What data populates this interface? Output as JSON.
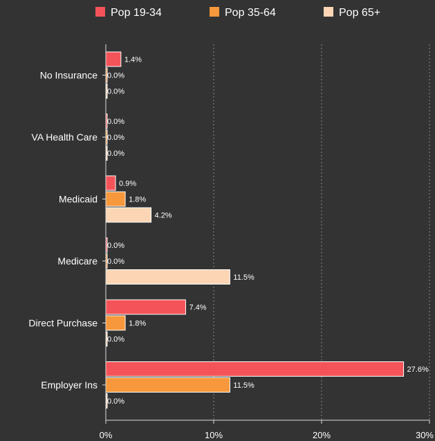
{
  "chart_data": {
    "type": "bar",
    "orientation": "horizontal",
    "categories": [
      "No Insurance",
      "VA Health Care",
      "Medicaid",
      "Medicare",
      "Direct Purchase",
      "Employer Ins"
    ],
    "series": [
      {
        "name": "Pop 19-34",
        "color": "#f45459",
        "values": [
          1.4,
          0.0,
          0.9,
          0.0,
          7.4,
          27.6
        ],
        "labels": [
          "1.4%",
          "0.0%",
          "0.9%",
          "0.0%",
          "7.4%",
          "27.6%"
        ]
      },
      {
        "name": "Pop 35-64",
        "color": "#f6983b",
        "values": [
          0.0,
          0.0,
          1.8,
          0.0,
          1.8,
          11.5
        ],
        "labels": [
          "0.0%",
          "0.0%",
          "1.8%",
          "0.0%",
          "1.8%",
          "11.5%"
        ]
      },
      {
        "name": "Pop 65+",
        "color": "#fbd5b4",
        "values": [
          0.0,
          0.0,
          4.2,
          11.5,
          0.0,
          0.0
        ],
        "labels": [
          "0.0%",
          "0.0%",
          "4.2%",
          "11.5%",
          "0.0%",
          "0.0%"
        ]
      }
    ],
    "x_ticks": [
      0,
      10,
      20,
      30
    ],
    "x_tick_labels": [
      "0%",
      "10%",
      "20%",
      "30%"
    ],
    "xlim": [
      0,
      30
    ],
    "grid": "vertical-dotted",
    "legend": "top"
  }
}
